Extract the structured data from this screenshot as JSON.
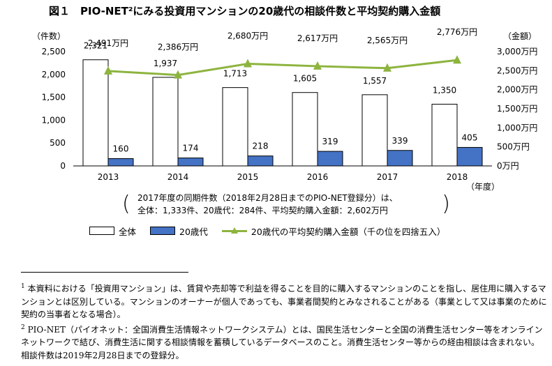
{
  "figure": {
    "title": "図１　PIO-NET²にみる投資用マンションの20歳代の相談件数と平均契約購入金額"
  },
  "note": {
    "line1": "2017年度の同期件数（2018年2月28日までのPIO-NET登録分）は、",
    "line2": "全体：1,333件、20歳代：284件、平均契約購入金額：2,602万円"
  },
  "footnotes": {
    "fn1_mark": "1",
    "fn1_text": "本資料における「投資用マンション」は、賃貸や売却等で利益を得ることを目的に購入するマンションのことを指し、居住用に購入するマンションとは区別している。マンションのオーナーが個人であっても、事業者間契約とみなされることがある（事業として又は事業のために契約の当事者となる場合）。",
    "fn2_mark": "2",
    "fn2_text": "PIO-NET（パイオネット：全国消費生活情報ネットワークシステム）とは、国民生活センターと全国の消費生活センター等をオンラインネットワークで結び、消費生活に関する相談情報を蓄積しているデータベースのこと。消費生活センター等からの経由相談は含まれない。相談件数は2019年2月28日までの登録分。"
  },
  "chart_data": {
    "type": "bar",
    "categories": [
      "2013",
      "2014",
      "2015",
      "2016",
      "2017",
      "2018"
    ],
    "x_unit": "（年度）",
    "y_left": {
      "label": "（件数）",
      "range": [
        0,
        2500
      ],
      "ticks": [
        "0",
        "500",
        "1,000",
        "1,500",
        "2,000",
        "2,500"
      ]
    },
    "y_right": {
      "label": "（金額）",
      "range": [
        0,
        3000
      ],
      "ticks": [
        "0万円",
        "500万円",
        "1,000万円",
        "1,500万円",
        "2,000万円",
        "2,500万円",
        "3,000万円"
      ]
    },
    "series": [
      {
        "name": "全体",
        "kind": "bar",
        "axis": "left",
        "color": "#FFFFFF",
        "values": [
          2321,
          1937,
          1713,
          1605,
          1557,
          1350
        ],
        "labels": [
          "2,321",
          "1,937",
          "1,713",
          "1,605",
          "1,557",
          "1,350"
        ]
      },
      {
        "name": "20歳代",
        "kind": "bar",
        "axis": "left",
        "color": "#4472C4",
        "values": [
          160,
          174,
          218,
          319,
          339,
          405
        ],
        "labels": [
          "160",
          "174",
          "218",
          "319",
          "339",
          "405"
        ]
      },
      {
        "name": "20歳代の平均契約購入金額（千の位を四捨五入）",
        "kind": "line",
        "axis": "right",
        "color": "#8DB43E",
        "values": [
          2491,
          2386,
          2680,
          2617,
          2565,
          2776
        ],
        "labels": [
          "2,491万円",
          "2,386万円",
          "2,680万円",
          "2,617万円",
          "2,565万円",
          "2,776万円"
        ]
      }
    ],
    "legend_position": "bottom",
    "grid": false
  }
}
